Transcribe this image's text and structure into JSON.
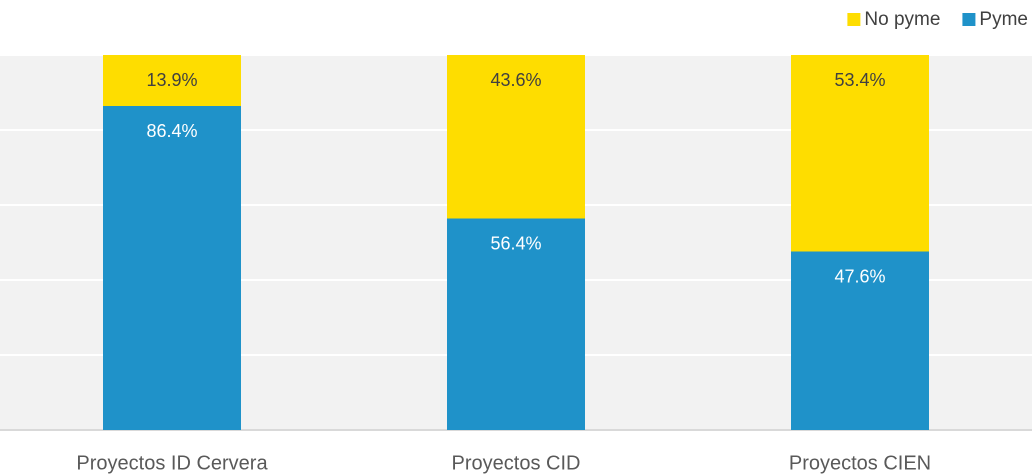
{
  "chart_data": {
    "type": "stacked_bar",
    "categories": [
      "Proyectos ID Cervera",
      "Proyectos CID",
      "Proyectos CIEN"
    ],
    "series": [
      {
        "name": "Pyme",
        "color": "#1f92c9",
        "values": [
          86.4,
          56.4,
          47.6
        ],
        "value_labels": [
          "86.4%",
          "56.4%",
          "47.6%"
        ]
      },
      {
        "name": "No pyme",
        "color": "#fedd00",
        "values": [
          13.9,
          43.6,
          53.4
        ],
        "value_labels": [
          "13.9%",
          "43.6%",
          "53.4%"
        ]
      }
    ],
    "ylim": [
      0,
      100
    ],
    "yticks": [
      0,
      20,
      40,
      60,
      80,
      100
    ],
    "grid": true,
    "legend": "top-right"
  }
}
